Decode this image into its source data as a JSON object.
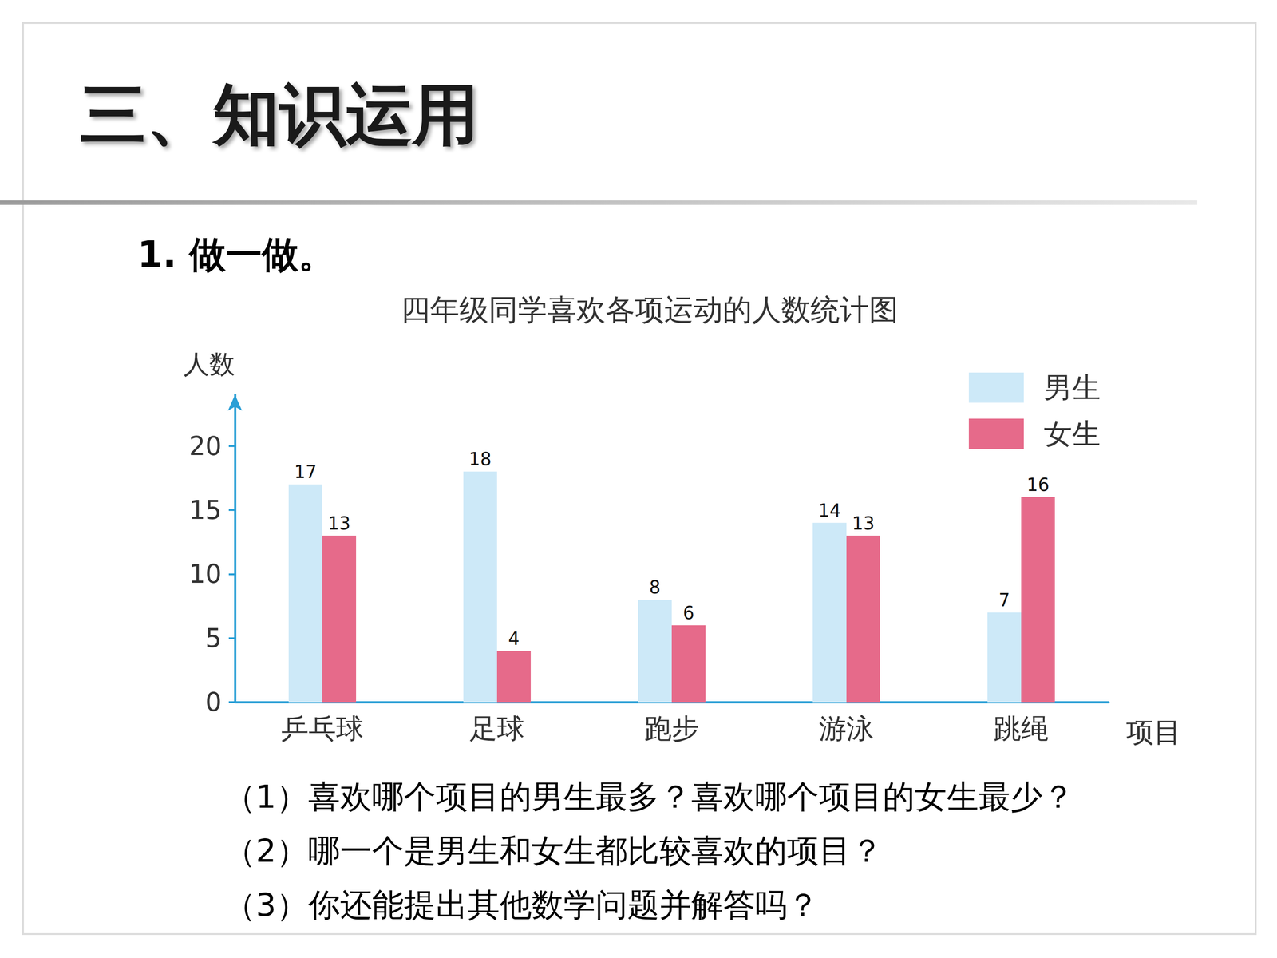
{
  "slide": {
    "heading": "三、知识运用",
    "exercise": "1. 做一做。",
    "questions": [
      "（1）喜欢哪个项目的男生最多？喜欢哪个项目的女生最少？",
      "（2）哪一个是男生和女生都比较喜欢的项目？",
      "（3）你还能提出其他数学问题并解答吗？"
    ]
  },
  "chart_data": {
    "type": "bar",
    "title": "四年级同学喜欢各项运动的人数统计图",
    "x_label": "项目",
    "y_label": "人数",
    "categories": [
      "乒乓球",
      "足球",
      "跑步",
      "游泳",
      "跳绳"
    ],
    "series": [
      {
        "name": "男生",
        "color": "#cde9f8",
        "values": [
          17,
          18,
          8,
          14,
          7
        ]
      },
      {
        "name": "女生",
        "color": "#e66a8a",
        "values": [
          13,
          4,
          6,
          13,
          16
        ]
      }
    ],
    "ylim": [
      0,
      24
    ],
    "yticks": [
      0,
      5,
      10,
      15,
      20
    ],
    "grid": false,
    "legend": "upper right",
    "data_labels": true
  }
}
